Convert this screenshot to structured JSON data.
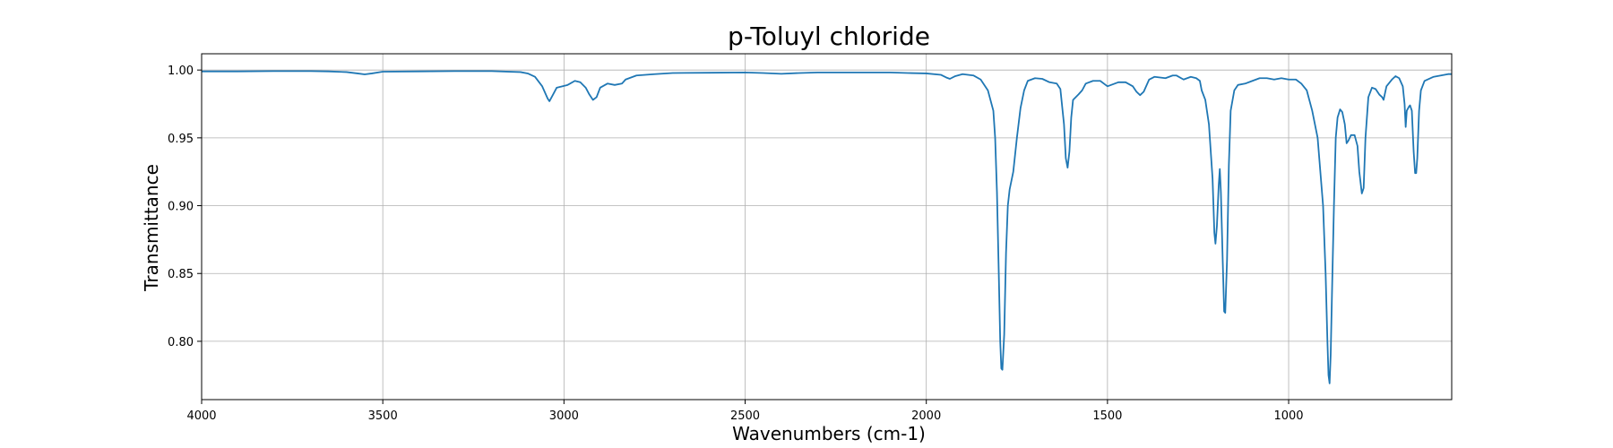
{
  "chart_data": {
    "type": "line",
    "title": "p-Toluyl chloride",
    "xlabel": "Wavenumbers (cm-1)",
    "ylabel": "Transmittance",
    "xlim": [
      4000,
      550
    ],
    "ylim": [
      0.757,
      1.012
    ],
    "x_reversed": true,
    "grid": true,
    "line_color": "#1f77b4",
    "x_ticks": [
      4000,
      3500,
      3000,
      2500,
      2000,
      1500,
      1000
    ],
    "x_tick_labels": [
      "4000",
      "3500",
      "3000",
      "2500",
      "2000",
      "1500",
      "1000"
    ],
    "y_ticks": [
      0.8,
      0.85,
      0.9,
      0.95,
      1.0
    ],
    "y_tick_labels": [
      "0.80",
      "0.85",
      "0.90",
      "0.95",
      "1.00"
    ],
    "series": [
      {
        "points": [
          [
            4000,
            0.999
          ],
          [
            3900,
            0.999
          ],
          [
            3800,
            0.9992
          ],
          [
            3700,
            0.9992
          ],
          [
            3650,
            0.999
          ],
          [
            3600,
            0.9985
          ],
          [
            3570,
            0.9975
          ],
          [
            3550,
            0.9968
          ],
          [
            3530,
            0.9975
          ],
          [
            3500,
            0.9988
          ],
          [
            3400,
            0.999
          ],
          [
            3300,
            0.9992
          ],
          [
            3200,
            0.9992
          ],
          [
            3120,
            0.9985
          ],
          [
            3100,
            0.9975
          ],
          [
            3080,
            0.995
          ],
          [
            3060,
            0.988
          ],
          [
            3045,
            0.979
          ],
          [
            3040,
            0.977
          ],
          [
            3030,
            0.982
          ],
          [
            3020,
            0.987
          ],
          [
            3005,
            0.988
          ],
          [
            2990,
            0.989
          ],
          [
            2970,
            0.992
          ],
          [
            2955,
            0.991
          ],
          [
            2940,
            0.987
          ],
          [
            2930,
            0.982
          ],
          [
            2920,
            0.978
          ],
          [
            2910,
            0.98
          ],
          [
            2900,
            0.987
          ],
          [
            2880,
            0.99
          ],
          [
            2860,
            0.989
          ],
          [
            2840,
            0.99
          ],
          [
            2830,
            0.993
          ],
          [
            2800,
            0.996
          ],
          [
            2750,
            0.997
          ],
          [
            2700,
            0.9978
          ],
          [
            2600,
            0.998
          ],
          [
            2500,
            0.9982
          ],
          [
            2450,
            0.9978
          ],
          [
            2400,
            0.9972
          ],
          [
            2350,
            0.9978
          ],
          [
            2300,
            0.9982
          ],
          [
            2200,
            0.9982
          ],
          [
            2100,
            0.9982
          ],
          [
            2050,
            0.9978
          ],
          [
            2000,
            0.9975
          ],
          [
            1960,
            0.9965
          ],
          [
            1945,
            0.9945
          ],
          [
            1935,
            0.9935
          ],
          [
            1920,
            0.9955
          ],
          [
            1900,
            0.997
          ],
          [
            1870,
            0.996
          ],
          [
            1850,
            0.993
          ],
          [
            1830,
            0.985
          ],
          [
            1815,
            0.97
          ],
          [
            1810,
            0.95
          ],
          [
            1805,
            0.91
          ],
          [
            1800,
            0.85
          ],
          [
            1796,
            0.8
          ],
          [
            1793,
            0.78
          ],
          [
            1790,
            0.779
          ],
          [
            1785,
            0.805
          ],
          [
            1780,
            0.865
          ],
          [
            1775,
            0.9
          ],
          [
            1770,
            0.912
          ],
          [
            1760,
            0.925
          ],
          [
            1750,
            0.95
          ],
          [
            1740,
            0.972
          ],
          [
            1730,
            0.985
          ],
          [
            1720,
            0.992
          ],
          [
            1700,
            0.994
          ],
          [
            1680,
            0.9935
          ],
          [
            1660,
            0.991
          ],
          [
            1640,
            0.99
          ],
          [
            1630,
            0.986
          ],
          [
            1620,
            0.96
          ],
          [
            1615,
            0.935
          ],
          [
            1610,
            0.928
          ],
          [
            1605,
            0.94
          ],
          [
            1600,
            0.965
          ],
          [
            1595,
            0.978
          ],
          [
            1580,
            0.982
          ],
          [
            1570,
            0.985
          ],
          [
            1560,
            0.99
          ],
          [
            1540,
            0.992
          ],
          [
            1520,
            0.992
          ],
          [
            1505,
            0.989
          ],
          [
            1500,
            0.988
          ],
          [
            1490,
            0.989
          ],
          [
            1470,
            0.991
          ],
          [
            1450,
            0.991
          ],
          [
            1430,
            0.988
          ],
          [
            1420,
            0.984
          ],
          [
            1410,
            0.9815
          ],
          [
            1400,
            0.984
          ],
          [
            1385,
            0.993
          ],
          [
            1370,
            0.995
          ],
          [
            1340,
            0.994
          ],
          [
            1320,
            0.996
          ],
          [
            1310,
            0.996
          ],
          [
            1290,
            0.993
          ],
          [
            1270,
            0.995
          ],
          [
            1255,
            0.994
          ],
          [
            1245,
            0.992
          ],
          [
            1240,
            0.985
          ],
          [
            1230,
            0.978
          ],
          [
            1220,
            0.96
          ],
          [
            1210,
            0.92
          ],
          [
            1205,
            0.88
          ],
          [
            1202,
            0.872
          ],
          [
            1198,
            0.885
          ],
          [
            1193,
            0.915
          ],
          [
            1190,
            0.927
          ],
          [
            1187,
            0.91
          ],
          [
            1182,
            0.86
          ],
          [
            1178,
            0.822
          ],
          [
            1175,
            0.821
          ],
          [
            1170,
            0.86
          ],
          [
            1165,
            0.93
          ],
          [
            1160,
            0.97
          ],
          [
            1150,
            0.985
          ],
          [
            1140,
            0.989
          ],
          [
            1120,
            0.99
          ],
          [
            1100,
            0.992
          ],
          [
            1080,
            0.994
          ],
          [
            1060,
            0.994
          ],
          [
            1040,
            0.993
          ],
          [
            1020,
            0.994
          ],
          [
            1000,
            0.993
          ],
          [
            980,
            0.993
          ],
          [
            965,
            0.99
          ],
          [
            950,
            0.985
          ],
          [
            935,
            0.97
          ],
          [
            920,
            0.95
          ],
          [
            905,
            0.9
          ],
          [
            898,
            0.85
          ],
          [
            893,
            0.8
          ],
          [
            890,
            0.775
          ],
          [
            887,
            0.769
          ],
          [
            884,
            0.79
          ],
          [
            880,
            0.84
          ],
          [
            875,
            0.9
          ],
          [
            870,
            0.95
          ],
          [
            865,
            0.965
          ],
          [
            858,
            0.971
          ],
          [
            852,
            0.969
          ],
          [
            845,
            0.96
          ],
          [
            840,
            0.946
          ],
          [
            835,
            0.948
          ],
          [
            828,
            0.952
          ],
          [
            818,
            0.952
          ],
          [
            810,
            0.944
          ],
          [
            805,
            0.925
          ],
          [
            798,
            0.909
          ],
          [
            793,
            0.913
          ],
          [
            788,
            0.95
          ],
          [
            780,
            0.98
          ],
          [
            770,
            0.987
          ],
          [
            760,
            0.986
          ],
          [
            750,
            0.982
          ],
          [
            742,
            0.98
          ],
          [
            738,
            0.978
          ],
          [
            730,
            0.988
          ],
          [
            715,
            0.993
          ],
          [
            705,
            0.9955
          ],
          [
            695,
            0.994
          ],
          [
            685,
            0.988
          ],
          [
            680,
            0.975
          ],
          [
            677,
            0.958
          ],
          [
            674,
            0.97
          ],
          [
            668,
            0.973
          ],
          [
            665,
            0.974
          ],
          [
            660,
            0.97
          ],
          [
            655,
            0.94
          ],
          [
            651,
            0.924
          ],
          [
            648,
            0.924
          ],
          [
            645,
            0.935
          ],
          [
            640,
            0.97
          ],
          [
            635,
            0.985
          ],
          [
            625,
            0.992
          ],
          [
            600,
            0.995
          ],
          [
            580,
            0.996
          ],
          [
            560,
            0.997
          ],
          [
            550,
            0.997
          ]
        ]
      }
    ]
  }
}
